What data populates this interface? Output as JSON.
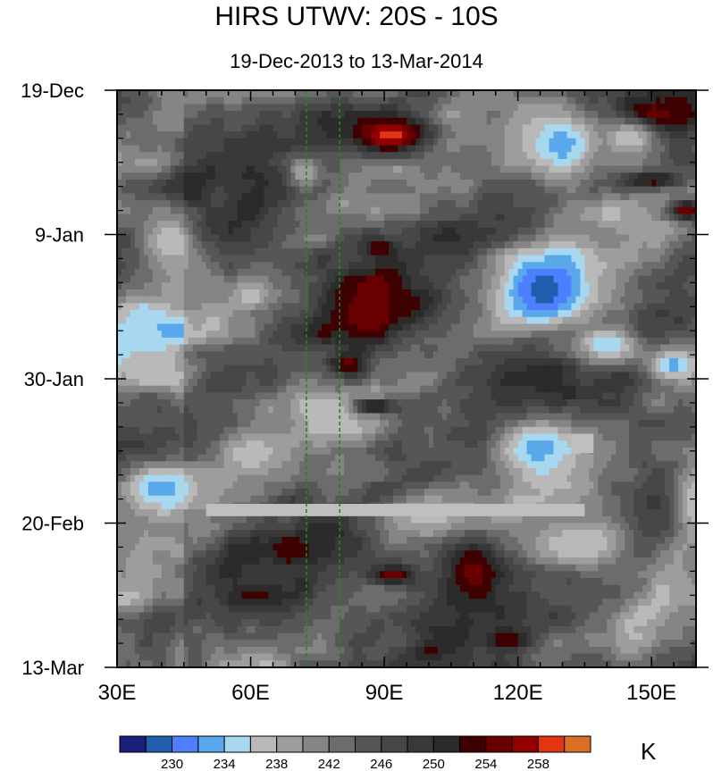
{
  "header": {
    "title": "HIRS UTWV: 20S - 10S",
    "subtitle": "19-Dec-2013 to 13-Mar-2014"
  },
  "chart_data": {
    "type": "heatmap",
    "title": "HIRS UTWV: 20S - 10S",
    "subtitle": "19-Dec-2013 to 13-Mar-2014",
    "x_ticks": [
      {
        "value": 30,
        "label": "30E"
      },
      {
        "value": 60,
        "label": "60E"
      },
      {
        "value": 90,
        "label": "90E"
      },
      {
        "value": 120,
        "label": "120E"
      },
      {
        "value": 150,
        "label": "150E"
      }
    ],
    "xlim": [
      30,
      160
    ],
    "y_ticks": [
      {
        "day": 0,
        "label": "19-Dec"
      },
      {
        "day": 21,
        "label": "9-Jan"
      },
      {
        "day": 42,
        "label": "30-Jan"
      },
      {
        "day": 63,
        "label": "20-Feb"
      },
      {
        "day": 84,
        "label": "13-Mar"
      }
    ],
    "ylim_days": [
      0,
      84
    ],
    "reference_lines_lon": [
      72.5,
      80
    ],
    "missing_data": [
      {
        "lon": [
          50,
          135
        ],
        "day": [
          60.2,
          62.0
        ]
      },
      {
        "lon": [
          132,
          137
        ],
        "day": [
          50.0,
          52.8
        ]
      }
    ],
    "colorbar": {
      "unit": "K",
      "levels": [
        228,
        230,
        232,
        234,
        236,
        238,
        240,
        242,
        244,
        246,
        248,
        250,
        252,
        254,
        256,
        258
      ],
      "labeled_levels": [
        230,
        234,
        238,
        242,
        246,
        250,
        254,
        258
      ],
      "colors": [
        "#1a1f7a",
        "#1f5fad",
        "#4d7fff",
        "#5aa8ec",
        "#a8d8ef",
        "#b9b9b9",
        "#9d9d9d",
        "#858585",
        "#6c6c6c",
        "#565656",
        "#474747",
        "#393939",
        "#2b2b2b",
        "#3e0000",
        "#690000",
        "#930000",
        "#e33512",
        "#d96f25"
      ]
    },
    "features": [
      {
        "lon": 91,
        "day": 6.5,
        "rx": 10,
        "ry": 3.0,
        "value": 259
      },
      {
        "lon": 149,
        "day": 3.7,
        "rx": 7,
        "ry": 2.2,
        "value": 258
      },
      {
        "lon": 150,
        "day": 13,
        "rx": 7,
        "ry": 1.2,
        "value": 254
      },
      {
        "lon": 158,
        "day": 17.5,
        "rx": 4,
        "ry": 1.5,
        "value": 256
      },
      {
        "lon": 89,
        "day": 23,
        "rx": 4,
        "ry": 1.2,
        "value": 254
      },
      {
        "lon": 87,
        "day": 32,
        "rx": 8,
        "ry": 5.0,
        "value": 256
      },
      {
        "lon": 82,
        "day": 40,
        "rx": 4,
        "ry": 1.5,
        "value": 255
      },
      {
        "lon": 88,
        "day": 46,
        "rx": 5,
        "ry": 1.2,
        "value": 254
      },
      {
        "lon": 110,
        "day": 70,
        "rx": 8,
        "ry": 6.0,
        "value": 255
      },
      {
        "lon": 92,
        "day": 70.5,
        "rx": 5,
        "ry": 1.5,
        "value": 255
      },
      {
        "lon": 118,
        "day": 80,
        "rx": 5,
        "ry": 1.5,
        "value": 254
      },
      {
        "lon": 72,
        "day": 12,
        "rx": 4,
        "ry": 2.5,
        "value": 238
      },
      {
        "lon": 130,
        "day": 8,
        "rx": 10,
        "ry": 6.0,
        "value": 233
      },
      {
        "lon": 145,
        "day": 7,
        "rx": 6,
        "ry": 3.0,
        "value": 236
      },
      {
        "lon": 126,
        "day": 29,
        "rx": 12,
        "ry": 6.0,
        "value": 229
      },
      {
        "lon": 140,
        "day": 37,
        "rx": 8,
        "ry": 3.0,
        "value": 234
      },
      {
        "lon": 155,
        "day": 40,
        "rx": 6,
        "ry": 2.5,
        "value": 233
      },
      {
        "lon": 125,
        "day": 52,
        "rx": 10,
        "ry": 5.0,
        "value": 233
      },
      {
        "lon": 40,
        "day": 58,
        "rx": 10,
        "ry": 4.0,
        "value": 233
      },
      {
        "lon": 60,
        "day": 53,
        "rx": 8,
        "ry": 3.0,
        "value": 236
      },
      {
        "lon": 42,
        "day": 22,
        "rx": 7,
        "ry": 4.0,
        "value": 236
      },
      {
        "lon": 60,
        "day": 30,
        "rx": 5,
        "ry": 2.0,
        "value": 237
      },
      {
        "lon": 38,
        "day": 39,
        "rx": 6,
        "ry": 3.0,
        "value": 236
      },
      {
        "lon": 135,
        "day": 66,
        "rx": 12,
        "ry": 4.0,
        "value": 236
      },
      {
        "lon": 100,
        "day": 62,
        "rx": 10,
        "ry": 3.0,
        "value": 237
      },
      {
        "lon": 160,
        "day": 60,
        "rx": 6,
        "ry": 8.0,
        "value": 236
      }
    ]
  }
}
